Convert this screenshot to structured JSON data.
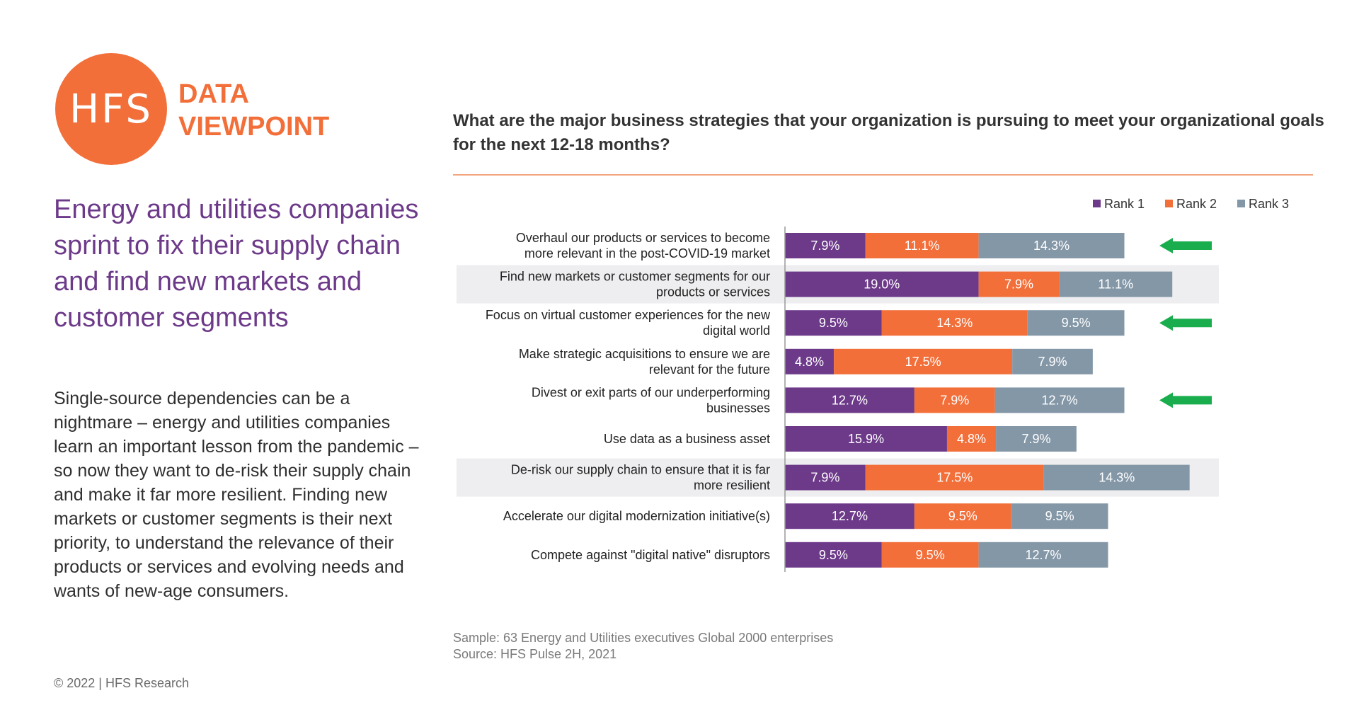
{
  "brand": {
    "logo_text": "HFS",
    "line1": "DATA",
    "line2": "VIEWPOINT"
  },
  "headline": "Energy and utilities companies sprint to fix their supply chain and find new markets and customer segments",
  "body": "Single-source dependencies can be a nightmare – energy and utilities companies learn an important lesson from the pandemic – so now they want to de-risk their supply chain and make it far more resilient. Finding new markets or customer segments is their next priority, to understand the relevance of their products or services and evolving needs and wants of new-age consumers.",
  "copyright": "© 2022 | HFS Research",
  "question": "What are the major business strategies that your organization is pursuing to meet your organizational goals for the next 12-18 months?",
  "sample": "Sample: 63 Energy and Utilities executives Global 2000 enterprises",
  "source": "Source: HFS Pulse 2H, 2021",
  "colors": {
    "accent_orange": "#f26f3a",
    "headline_purple": "#6d3a8a",
    "rank1": "#6d3a8a",
    "rank2": "#f26f3a",
    "rank3": "#8497a7",
    "highlight_row": "#eeeef0",
    "arrow": "#1aad4e"
  },
  "chart_data": {
    "type": "bar",
    "orientation": "horizontal",
    "stacked": true,
    "legend_position": "top-right",
    "categories": [
      [
        "Overhaul our products or services to become",
        "more relevant in the post-COVID-19 market"
      ],
      [
        "Find new markets or customer segments for our",
        "products or services"
      ],
      [
        "Focus on virtual customer experiences for the new",
        "digital world"
      ],
      [
        "Make strategic acquisitions to ensure we are",
        "relevant for the future"
      ],
      [
        "Divest or exit parts of our underperforming",
        "businesses"
      ],
      [
        "Use data as a business asset"
      ],
      [
        "De-risk our supply chain to ensure that it is far",
        "more resilient"
      ],
      [
        "Accelerate our digital modernization initiative(s)"
      ],
      [
        "Compete against \"digital native\" disruptors"
      ]
    ],
    "series": [
      {
        "name": "Rank 1",
        "color": "#6d3a8a",
        "values": [
          7.9,
          19.0,
          9.5,
          4.8,
          12.7,
          15.9,
          7.9,
          12.7,
          9.5
        ]
      },
      {
        "name": "Rank 2",
        "color": "#f26f3a",
        "values": [
          11.1,
          7.9,
          14.3,
          17.5,
          7.9,
          4.8,
          17.5,
          9.5,
          9.5
        ]
      },
      {
        "name": "Rank 3",
        "color": "#8497a7",
        "values": [
          14.3,
          11.1,
          9.5,
          7.9,
          12.7,
          7.9,
          14.3,
          9.5,
          12.7
        ]
      }
    ],
    "value_format": "%",
    "highlighted_rows": [
      1,
      6
    ],
    "arrow_rows": [
      0,
      2,
      4
    ]
  }
}
